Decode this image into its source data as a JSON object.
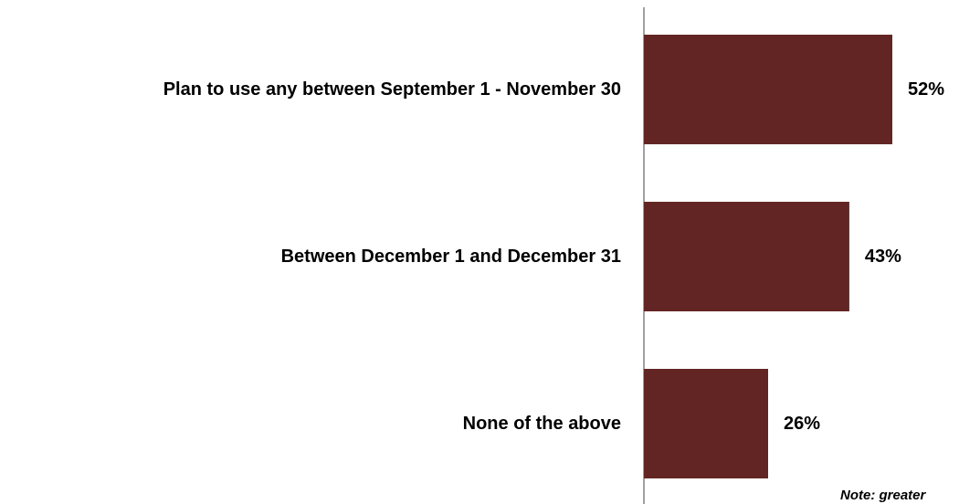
{
  "chart_data": {
    "type": "bar",
    "orientation": "horizontal",
    "categories": [
      "Plan to use any between September 1 - November 30",
      "Between December 1 and December 31",
      "None of the above"
    ],
    "values": [
      52,
      43,
      26
    ],
    "value_labels": [
      "52%",
      "43%",
      "26%"
    ],
    "unit": "%",
    "bar_color": "#632523",
    "axis_color": "#808080",
    "grid": false,
    "legend": "none"
  },
  "note": "Note: greater"
}
